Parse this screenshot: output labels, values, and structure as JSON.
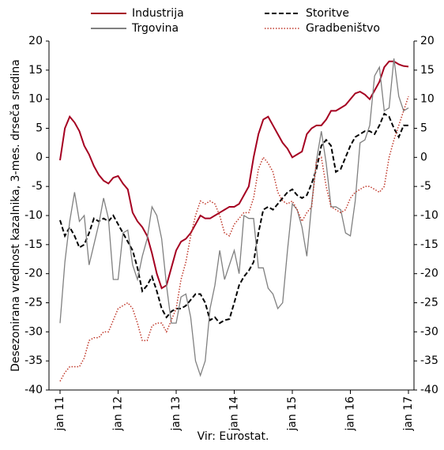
{
  "chart_data": {
    "type": "line",
    "y_label": "Desezonirana vrednost kazalnika, 3-mes. drseča sredina",
    "source": "Vir: Eurostat.",
    "categories": [
      "jan 11",
      null,
      null,
      null,
      null,
      null,
      null,
      null,
      null,
      null,
      null,
      null,
      "jan 12",
      null,
      null,
      null,
      null,
      null,
      null,
      null,
      null,
      null,
      null,
      null,
      "jan 13",
      null,
      null,
      null,
      null,
      null,
      null,
      null,
      null,
      null,
      null,
      null,
      "jan 14",
      null,
      null,
      null,
      null,
      null,
      null,
      null,
      null,
      null,
      null,
      null,
      "jan 15",
      null,
      null,
      null,
      null,
      null,
      null,
      null,
      null,
      null,
      null,
      null,
      "jan 16",
      null,
      null,
      null,
      null,
      null,
      null,
      null,
      null,
      null,
      null,
      null,
      "jan 17"
    ],
    "ylim": [
      -40,
      20
    ],
    "yticks": [
      -40,
      -35,
      -30,
      -25,
      -20,
      -15,
      -10,
      -5,
      0,
      5,
      10,
      15,
      20
    ],
    "y2lim": [
      -40,
      20
    ],
    "y2ticks": [
      -40,
      -35,
      -30,
      -25,
      -20,
      -15,
      -10,
      -5,
      0,
      5,
      10,
      15,
      20
    ],
    "series": [
      {
        "name": "Industrija",
        "color": "#a50021",
        "style": "solid",
        "values": [
          -0.5,
          5,
          7,
          6,
          4.5,
          2,
          0.5,
          -1.5,
          -3,
          -4,
          -4.5,
          -3.5,
          -3.2,
          -4.5,
          -5.5,
          -9.5,
          -11,
          -12,
          -13.5,
          -16.5,
          -20,
          -22.5,
          -22,
          -19,
          -16,
          -14.5,
          -14,
          -13,
          -11.5,
          -10,
          -10.5,
          -10.5,
          -10,
          -9.5,
          -9,
          -8.5,
          -8.5,
          -8,
          -6.5,
          -5,
          0,
          4,
          6.5,
          7,
          5.5,
          4,
          2.5,
          1.5,
          0,
          0.5,
          1,
          4,
          5,
          5.5,
          5.5,
          6.5,
          8,
          8,
          8.5,
          9,
          10,
          11,
          11.3,
          10.8,
          10,
          11.5,
          13,
          15.5,
          16.5,
          16.5,
          16,
          15.7,
          15.6
        ]
      },
      {
        "name": "Storitve",
        "color": "#000000",
        "style": "dashed",
        "values": [
          -10.8,
          -13.5,
          -12,
          -13.5,
          -15.5,
          -15,
          -13,
          -10.5,
          -11,
          -10.5,
          -11,
          -10,
          -11.5,
          -13,
          -14.5,
          -16,
          -19,
          -23,
          -22,
          -20.5,
          -23,
          -26,
          -27.5,
          -26.5,
          -26,
          -26,
          -25.5,
          -24.5,
          -23.5,
          -23.5,
          -25,
          -28,
          -27.5,
          -28.5,
          -28,
          -27.8,
          -25,
          -22,
          -20.5,
          -19.5,
          -18,
          -13,
          -9,
          -8.5,
          -9,
          -8,
          -7,
          -6,
          -5.5,
          -6.5,
          -7,
          -6.5,
          -4.5,
          -2,
          2,
          3,
          2,
          -2.5,
          -2,
          0,
          2,
          3.5,
          4,
          4.5,
          4.5,
          4,
          5.5,
          7.5,
          7,
          5,
          3.5,
          5.5,
          5.5
        ]
      },
      {
        "name": "Trgovina",
        "color": "#808080",
        "style": "solid",
        "values": [
          -28.5,
          -18,
          -11,
          -6,
          -11,
          -10,
          -18.5,
          -15,
          -11.5,
          -7,
          -10.5,
          -21,
          -21,
          -13,
          -12.5,
          -18.5,
          -21,
          -17,
          -14,
          -8.5,
          -10,
          -14,
          -22,
          -28.5,
          -28.5,
          -24,
          -23.5,
          -27.5,
          -35,
          -37.5,
          -35,
          -26,
          -22,
          -16,
          -21,
          -18.5,
          -16,
          -20,
          -10,
          -10.5,
          -10.5,
          -19,
          -19,
          -22.5,
          -23.5,
          -26,
          -25,
          -16,
          -8,
          -9,
          -12,
          -17,
          -8,
          -0.5,
          4.5,
          -1,
          -8.5,
          -8.5,
          -9,
          -13,
          -13.5,
          -7.5,
          2.5,
          3,
          5.5,
          14,
          15.5,
          8,
          8.5,
          17,
          10.5,
          8,
          8.5
        ]
      },
      {
        "name": "Gradbeništvo",
        "color": "#c0392b",
        "style": "dotted",
        "values": [
          -38.5,
          -37,
          -36,
          -36,
          -36,
          -34.5,
          -31.5,
          -31,
          -31,
          -30,
          -30,
          -28,
          -26,
          -25.5,
          -25,
          -26,
          -28.5,
          -31.5,
          -31.5,
          -29,
          -28.5,
          -28.5,
          -30,
          -28,
          -26,
          -21,
          -18,
          -13.5,
          -10,
          -7.5,
          -8,
          -7.5,
          -8,
          -10,
          -13,
          -13.5,
          -11.5,
          -10.5,
          -9.5,
          -9.5,
          -7,
          -2,
          0,
          -1,
          -2.5,
          -6,
          -7.5,
          -8,
          -7.5,
          -9,
          -11,
          -9.5,
          -8.5,
          -0.5,
          0,
          -5,
          -8.5,
          -9,
          -9.5,
          -9,
          -7,
          -6,
          -5.5,
          -5,
          -5,
          -5.5,
          -6,
          -5,
          0,
          3,
          5.5,
          8,
          10.5
        ]
      }
    ]
  }
}
